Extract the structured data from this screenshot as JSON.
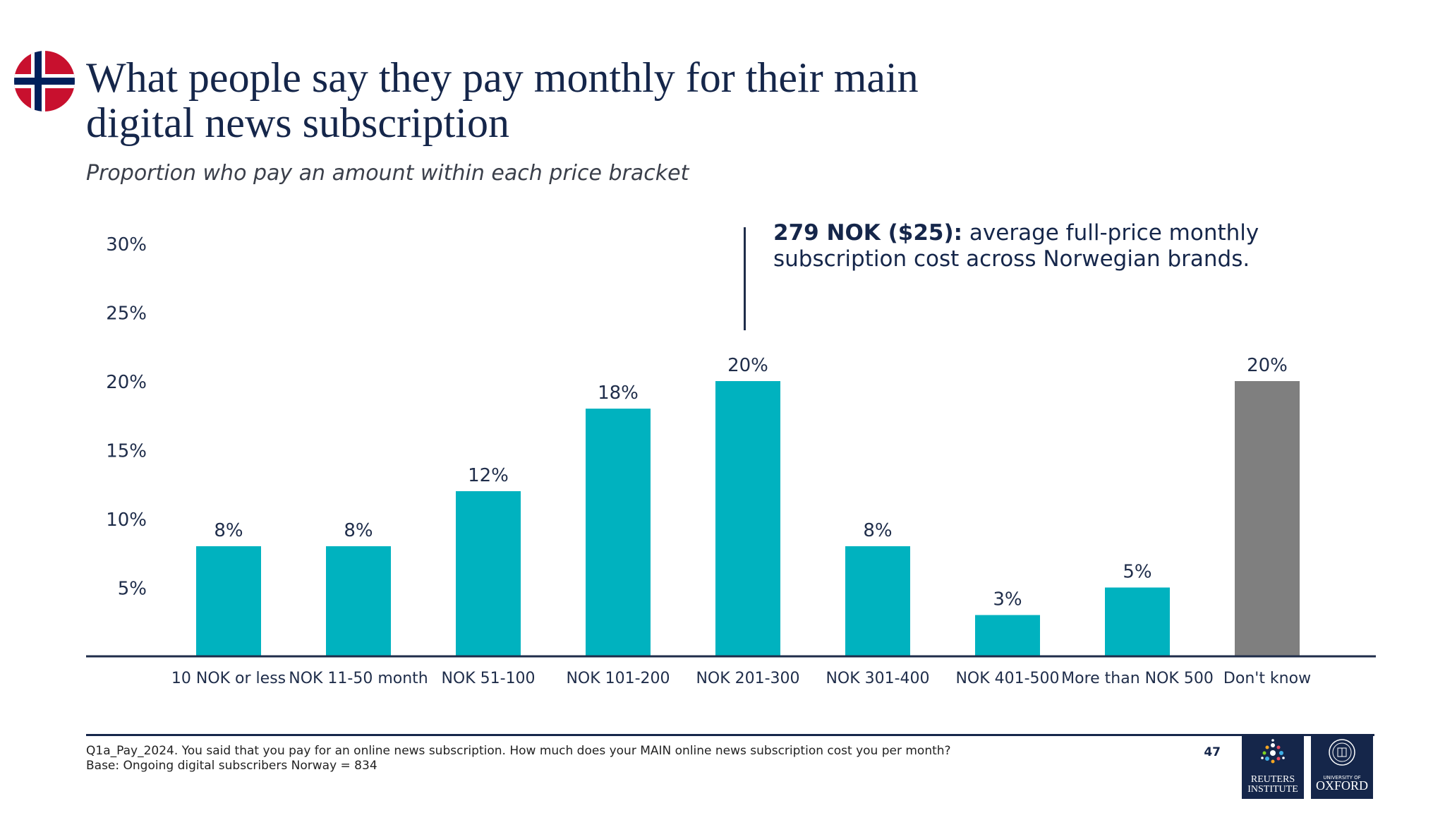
{
  "header": {
    "title": "What people say they pay monthly for their main digital news subscription",
    "subtitle": "Proportion who pay an amount within each price bracket"
  },
  "flag": {
    "icon": "norway-flag-icon",
    "colors": {
      "red": "#c8102e",
      "white": "#ffffff",
      "blue": "#00205b"
    }
  },
  "callout": {
    "highlight": "279 NOK ($25):",
    "text": " average full-price monthly subscription cost across Norwegian brands."
  },
  "chart_data": {
    "type": "bar",
    "title": "What people say they pay monthly for their main digital news subscription",
    "xlabel": "",
    "ylabel": "",
    "ylim": [
      0,
      30
    ],
    "yticks": [
      5,
      10,
      15,
      20,
      25,
      30
    ],
    "ytick_labels": [
      "5%",
      "10%",
      "15%",
      "20%",
      "25%",
      "30%"
    ],
    "grid": false,
    "categories": [
      "10 NOK or less",
      "NOK 11-50 month",
      "NOK 51-100",
      "NOK 101-200",
      "NOK 201-300",
      "NOK 301-400",
      "NOK 401-500",
      "More than NOK 500",
      "Don't know"
    ],
    "values": [
      8,
      8,
      12,
      18,
      20,
      8,
      3,
      5,
      20
    ],
    "value_labels": [
      "8%",
      "8%",
      "12%",
      "18%",
      "20%",
      "8%",
      "3%",
      "5%",
      "20%"
    ],
    "colors": [
      "#00b2bf",
      "#00b2bf",
      "#00b2bf",
      "#00b2bf",
      "#00b2bf",
      "#00b2bf",
      "#00b2bf",
      "#00b2bf",
      "#7f7f7f"
    ],
    "annotation_category": "NOK 201-300"
  },
  "footer": {
    "note_line1": "Q1a_Pay_2024. You said that you pay for an online news subscription. How much does your MAIN online news subscription cost you per month?",
    "note_line2": "Base: Ongoing digital subscribers Norway = 834",
    "page_number": "47",
    "logo_reuters_line1": "REUTERS",
    "logo_reuters_line2": "INSTITUTE",
    "logo_oxford_small": "UNIVERSITY OF",
    "logo_oxford_big": "OXFORD",
    "logo_color": "#15264a"
  }
}
